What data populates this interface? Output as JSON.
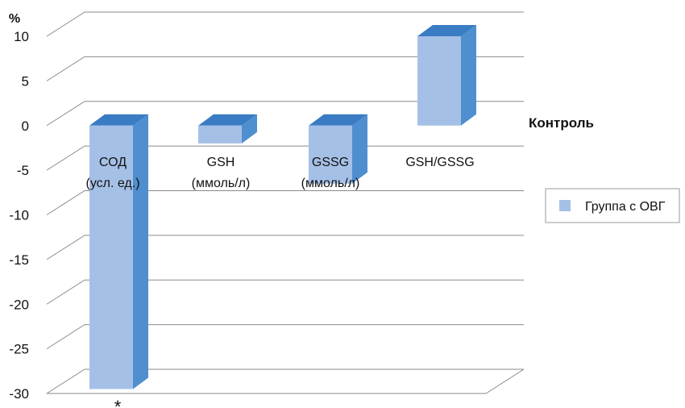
{
  "chart_data": {
    "type": "bar",
    "ylabel": "%",
    "ylim": [
      -30,
      10
    ],
    "yticks": [
      10,
      5,
      0,
      -5,
      -10,
      -15,
      -20,
      -25,
      -30
    ],
    "categories": [
      {
        "line1": "СОД",
        "line2": "(усл. ед.)"
      },
      {
        "line1": "GSH",
        "line2": "(ммоль/л)"
      },
      {
        "line1": "GSSG",
        "line2": "(ммоль/л)"
      },
      {
        "line1": "GSH/GSSG",
        "line2": ""
      }
    ],
    "series": [
      {
        "name": "Группа с ОВГ",
        "values": [
          -29.5,
          -2,
          -6.5,
          10
        ]
      }
    ],
    "baseline_label": "Контроль",
    "annotations": [
      {
        "category_index": 0,
        "text": "*"
      }
    ],
    "legend_position": "right",
    "grid": true,
    "colors": {
      "front": "#a5c0e6",
      "side": "#4f8fd0",
      "top": "#3a7cc4",
      "grid": "#8a8a8a"
    }
  }
}
